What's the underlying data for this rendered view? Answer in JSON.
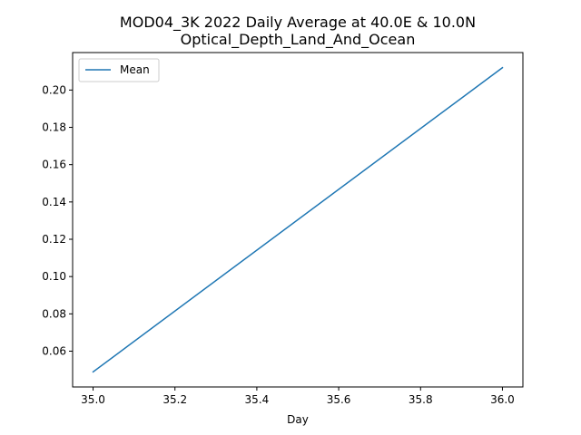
{
  "chart_data": {
    "type": "line",
    "title": "MOD04_3K 2022 Daily Average at 40.0E & 10.0N",
    "subtitle": "Optical_Depth_Land_And_Ocean",
    "xlabel": "Day",
    "ylabel": "",
    "xlim": [
      34.95,
      36.05
    ],
    "ylim": [
      0.0408,
      0.2201
    ],
    "xticks": [
      35.0,
      35.2,
      35.4,
      35.6,
      35.8,
      36.0
    ],
    "xtick_labels": [
      "35.0",
      "35.2",
      "35.4",
      "35.6",
      "35.8",
      "36.0"
    ],
    "yticks": [
      0.06,
      0.08,
      0.1,
      0.12,
      0.14,
      0.16,
      0.18,
      0.2
    ],
    "ytick_labels": [
      "0.06",
      "0.08",
      "0.10",
      "0.12",
      "0.14",
      "0.16",
      "0.18",
      "0.20"
    ],
    "grid": false,
    "legend_position": "top-left",
    "series": [
      {
        "name": "Mean",
        "color": "#1f77b4",
        "x": [
          35.0,
          36.0
        ],
        "y": [
          0.0489,
          0.212
        ]
      }
    ]
  }
}
